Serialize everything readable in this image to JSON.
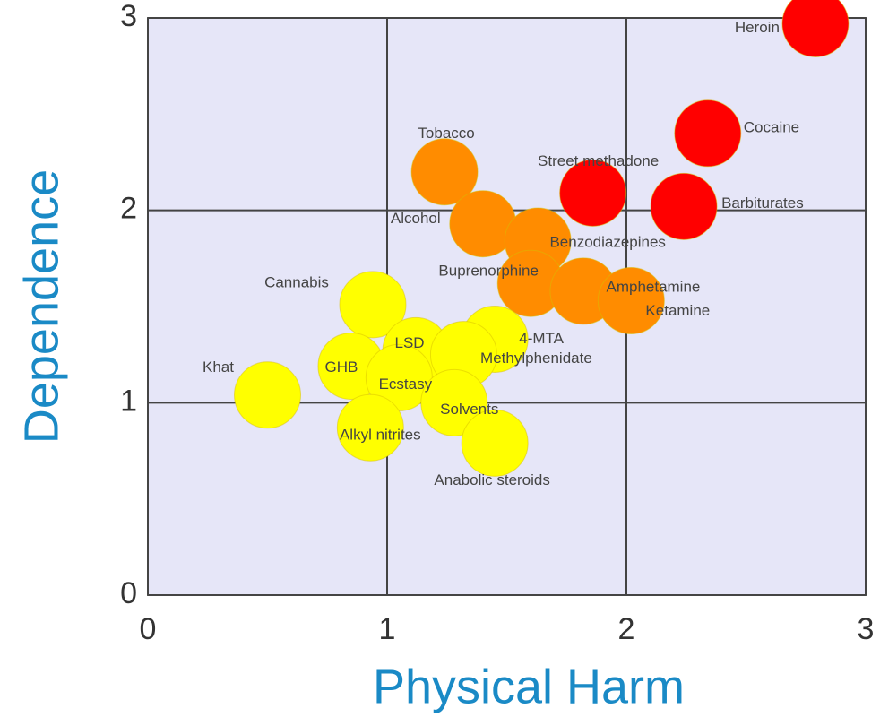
{
  "chart_data": {
    "type": "scatter",
    "x_label": "Physical Harm",
    "y_label": "Dependence",
    "labels": [
      "Heroin",
      "Cocaine",
      "Street methadone",
      "Barbiturates",
      "Tobacco",
      "Alcohol",
      "Benzodiazepines",
      "Buprenorphine",
      "Amphetamine",
      "Ketamine",
      "Cannabis",
      "4-MTA",
      "LSD",
      "Methylphenidate",
      "GHB",
      "Ecstasy",
      "Khat",
      "Solvents",
      "Alkyl nitrites",
      "Anabolic steroids"
    ],
    "x": [
      2.79,
      2.34,
      1.86,
      2.24,
      1.24,
      1.4,
      1.63,
      1.6,
      1.82,
      2.02,
      0.94,
      1.45,
      1.12,
      1.32,
      0.85,
      1.05,
      0.5,
      1.28,
      0.93,
      1.45
    ],
    "y": [
      2.97,
      2.4,
      2.09,
      2.02,
      2.2,
      1.93,
      1.84,
      1.62,
      1.58,
      1.53,
      1.51,
      1.33,
      1.27,
      1.25,
      1.19,
      1.13,
      1.04,
      1.0,
      0.87,
      0.79
    ],
    "colors": [
      "#ff0000",
      "#ff0000",
      "#ff0000",
      "#ff0000",
      "#ff8c00",
      "#ff8c00",
      "#ff8c00",
      "#ff8c00",
      "#ff8c00",
      "#ff8c00",
      "#ffff00",
      "#ffff00",
      "#ffff00",
      "#ffff00",
      "#ffff00",
      "#ffff00",
      "#ffff00",
      "#ffff00",
      "#ffff00",
      "#ffff00"
    ],
    "xlim": [
      0,
      3
    ],
    "ylim": [
      0,
      3
    ],
    "xticks": [
      0,
      1,
      2,
      3
    ],
    "yticks": [
      0,
      1,
      2,
      3
    ],
    "grid": true
  }
}
